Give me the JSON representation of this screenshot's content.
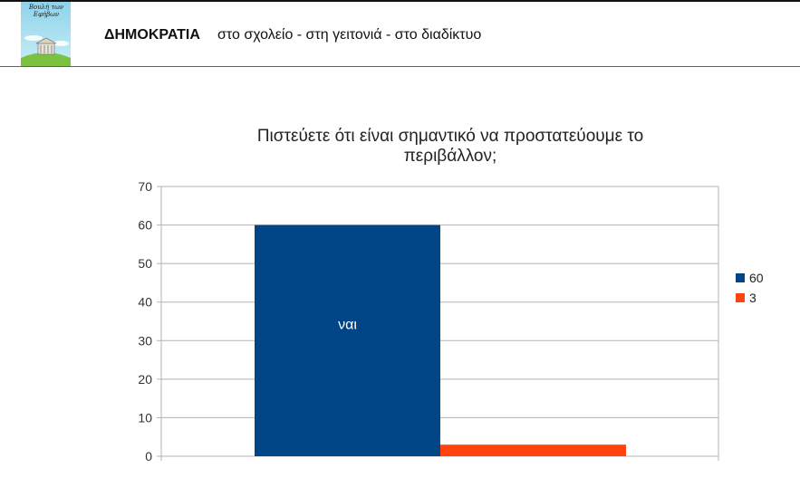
{
  "header": {
    "logo_text": "Βουλή των Εφήβων",
    "title": "ΔΗΜΟΚΡΑΤΙΑ",
    "subtitle": "στο σχολείο - στη γειτονιά - στο διαδίκτυο"
  },
  "colors": {
    "series_1": "#004586",
    "series_2": "#ff420e",
    "header_rule": "#3e7d32"
  },
  "chart_data": {
    "type": "bar",
    "title": "Πιστεύετε ότι είναι σημαντικό να προστατεύουμε το περιβάλλον;",
    "title_lines": [
      "Πιστεύετε ότι είναι σημαντικό να προστατεύουμε το",
      "περιβάλλον;"
    ],
    "categories": [
      ""
    ],
    "series": [
      {
        "name": "60",
        "values": [
          60
        ],
        "data_label": "ναι",
        "color": "#004586"
      },
      {
        "name": "3",
        "values": [
          3
        ],
        "color": "#ff420e"
      }
    ],
    "yticks": [
      0,
      10,
      20,
      30,
      40,
      50,
      60,
      70
    ],
    "ylim": [
      0,
      70
    ],
    "xlabel": "",
    "ylabel": "",
    "grid": true,
    "legend_position": "right"
  }
}
